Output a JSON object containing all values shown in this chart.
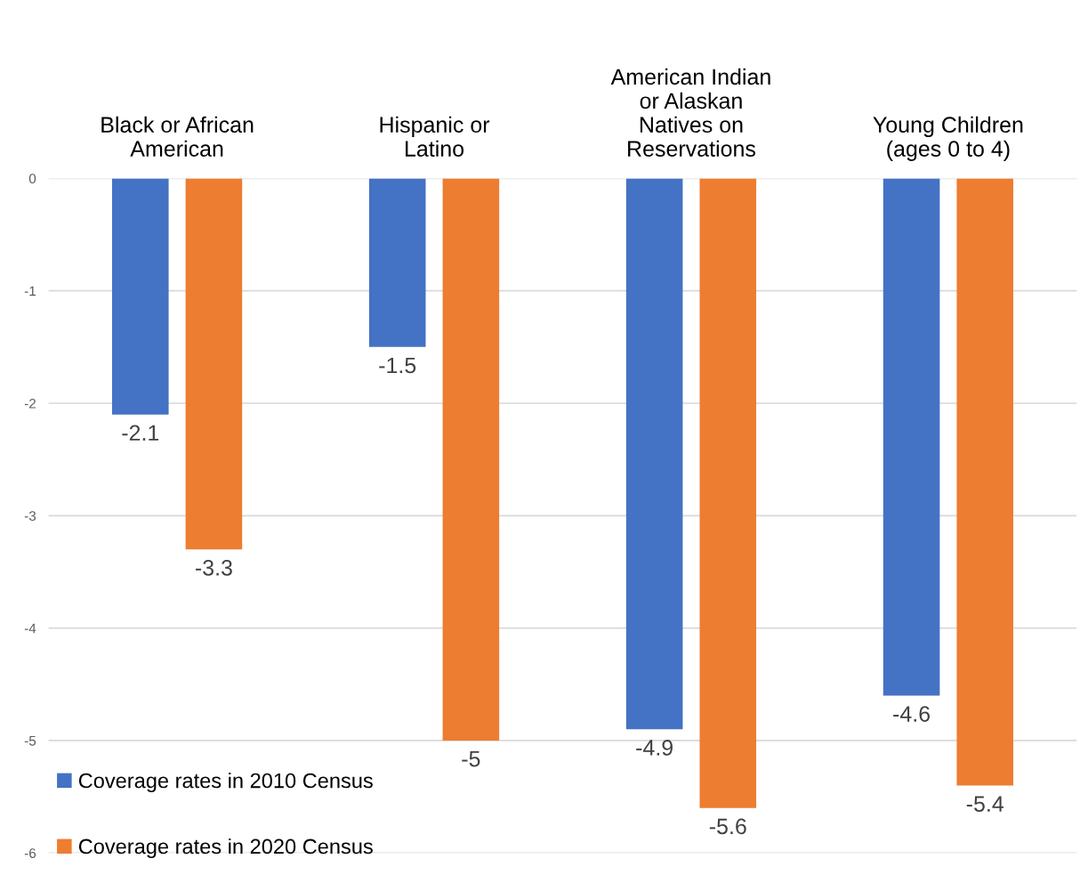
{
  "chart_data": {
    "type": "bar",
    "categories": [
      "Black or African\nAmerican",
      "Hispanic or\nLatino",
      "American Indian\nor Alaskan\nNatives on\nReservations",
      "Young Children\n(ages 0 to 4)"
    ],
    "series": [
      {
        "name": "Coverage rates in 2010 Census",
        "color": "#4472c4",
        "values": [
          -2.1,
          -1.5,
          -4.9,
          -4.6
        ]
      },
      {
        "name": "Coverage rates in 2020 Census",
        "color": "#ed7d31",
        "values": [
          -3.3,
          -5,
          -5.6,
          -5.4
        ]
      }
    ],
    "ylim": [
      -6,
      0
    ],
    "yticks": [
      0,
      -1,
      -2,
      -3,
      -4,
      -5,
      -6
    ],
    "grid": "y",
    "legend": "bottom left",
    "data_labels": true
  }
}
